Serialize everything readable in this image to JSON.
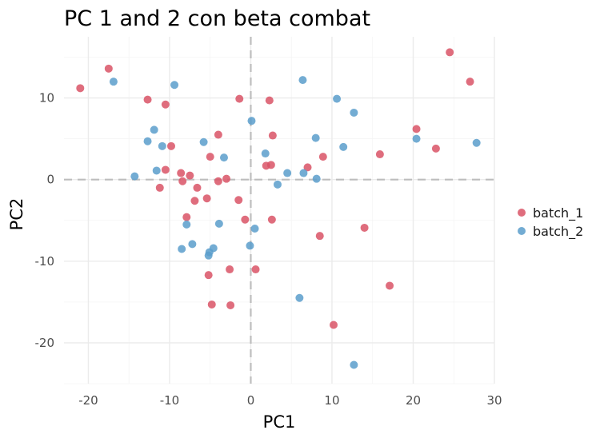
{
  "chart_data": {
    "type": "scatter",
    "title": "PC 1 and 2 con beta combat",
    "xlabel": "PC1",
    "ylabel": "PC2",
    "xlim": [
      -23,
      30
    ],
    "ylim": [
      -25,
      17.5
    ],
    "x_ticks": [
      -20,
      -10,
      0,
      10,
      20,
      30
    ],
    "y_ticks": [
      -20,
      -10,
      0,
      10
    ],
    "grid": true,
    "zero_lines": {
      "x": 0,
      "y": 0,
      "style": "dashed"
    },
    "legend_position": "right",
    "series": [
      {
        "name": "batch_1",
        "color": "#d95466",
        "points": [
          [
            -21.0,
            11.2
          ],
          [
            -17.5,
            13.6
          ],
          [
            -12.7,
            9.8
          ],
          [
            -10.5,
            9.2
          ],
          [
            -1.4,
            9.9
          ],
          [
            2.3,
            9.7
          ],
          [
            -4.0,
            5.5
          ],
          [
            2.7,
            5.4
          ],
          [
            -9.8,
            4.1
          ],
          [
            -5.0,
            2.8
          ],
          [
            -10.5,
            1.2
          ],
          [
            -11.2,
            -1.0
          ],
          [
            -8.6,
            0.8
          ],
          [
            -7.5,
            0.5
          ],
          [
            -8.4,
            -0.2
          ],
          [
            -6.6,
            -1.0
          ],
          [
            -6.9,
            -2.6
          ],
          [
            -5.4,
            -2.3
          ],
          [
            -4.0,
            -0.2
          ],
          [
            -3.0,
            0.1
          ],
          [
            -1.5,
            -2.5
          ],
          [
            -0.7,
            -4.9
          ],
          [
            2.6,
            -4.9
          ],
          [
            1.9,
            1.7
          ],
          [
            2.5,
            1.8
          ],
          [
            7.0,
            1.5
          ],
          [
            8.9,
            2.8
          ],
          [
            15.9,
            3.1
          ],
          [
            20.4,
            6.2
          ],
          [
            22.8,
            3.8
          ],
          [
            24.5,
            15.6
          ],
          [
            27.0,
            12.0
          ],
          [
            -7.9,
            -4.6
          ],
          [
            8.5,
            -6.9
          ],
          [
            14.0,
            -5.9
          ],
          [
            -5.2,
            -11.7
          ],
          [
            -2.6,
            -11.0
          ],
          [
            0.6,
            -11.0
          ],
          [
            -4.8,
            -15.3
          ],
          [
            -2.5,
            -15.4
          ],
          [
            17.1,
            -13.0
          ],
          [
            10.2,
            -17.8
          ]
        ]
      },
      {
        "name": "batch_2",
        "color": "#5b9ecb",
        "points": [
          [
            -16.9,
            12.0
          ],
          [
            -9.4,
            11.6
          ],
          [
            6.4,
            12.2
          ],
          [
            10.6,
            9.9
          ],
          [
            12.7,
            8.2
          ],
          [
            0.1,
            7.2
          ],
          [
            -11.9,
            6.1
          ],
          [
            -12.7,
            4.7
          ],
          [
            -10.9,
            4.1
          ],
          [
            -5.8,
            4.6
          ],
          [
            -3.3,
            2.7
          ],
          [
            1.8,
            3.2
          ],
          [
            8.0,
            5.1
          ],
          [
            11.4,
            4.0
          ],
          [
            20.4,
            5.0
          ],
          [
            27.8,
            4.5
          ],
          [
            -14.3,
            0.4
          ],
          [
            -11.6,
            1.1
          ],
          [
            4.5,
            0.8
          ],
          [
            6.5,
            0.8
          ],
          [
            8.1,
            0.1
          ],
          [
            3.3,
            -0.6
          ],
          [
            0.5,
            -6.0
          ],
          [
            -3.9,
            -5.4
          ],
          [
            -7.9,
            -5.5
          ],
          [
            -7.2,
            -7.9
          ],
          [
            -8.5,
            -8.5
          ],
          [
            -4.6,
            -8.4
          ],
          [
            -5.1,
            -8.9
          ],
          [
            -5.2,
            -9.3
          ],
          [
            -0.1,
            -8.1
          ],
          [
            6.0,
            -14.5
          ],
          [
            12.7,
            -22.7
          ]
        ]
      }
    ]
  }
}
